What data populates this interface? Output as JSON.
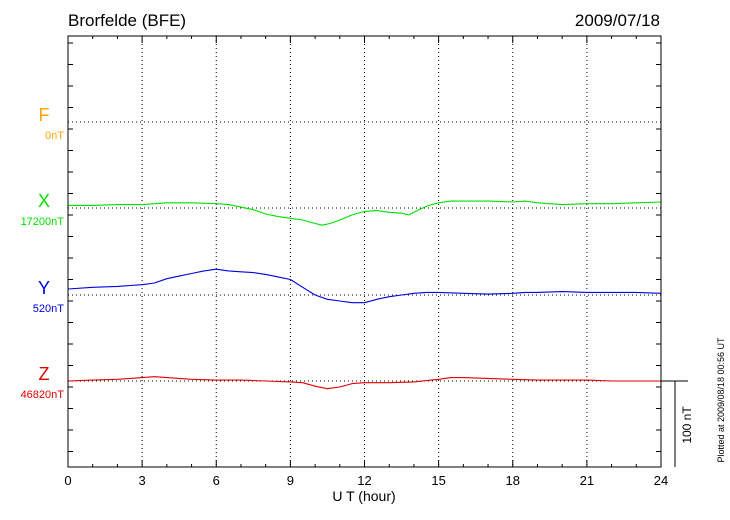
{
  "chart_data": {
    "type": "line",
    "title": "Brorfelde (BFE)",
    "date": "2009/07/18",
    "xlabel": "U T (hour)",
    "xlim": [
      0,
      24
    ],
    "xticks": [
      0,
      3,
      6,
      9,
      12,
      15,
      18,
      21,
      24
    ],
    "grid": true,
    "scale_bar_label": "100 nT",
    "side_note": "Plotted at 2009/08/18 00:56 UT",
    "series": [
      {
        "name": "F",
        "baseline_label": "0nT",
        "color": "#ffa500",
        "x": [],
        "y": []
      },
      {
        "name": "X",
        "baseline_label": "17200nT",
        "color": "#00e000",
        "x": [
          0,
          1,
          2,
          3,
          4,
          5,
          6,
          6.5,
          7,
          7.5,
          8,
          8.5,
          9,
          9.5,
          10,
          10.3,
          10.6,
          11,
          11.5,
          12,
          12.5,
          13,
          13.5,
          13.8,
          14.2,
          14.6,
          15,
          15.5,
          16,
          17,
          18,
          18.5,
          19,
          20,
          21,
          22,
          23,
          24
        ],
        "y": [
          3,
          3,
          4,
          4,
          6,
          6,
          5,
          4,
          1,
          -2,
          -7,
          -10,
          -12,
          -14,
          -18,
          -20,
          -18,
          -14,
          -8,
          -4,
          -3,
          -5,
          -6,
          -8,
          -2,
          3,
          6,
          8,
          8,
          8,
          7,
          8,
          6,
          4,
          5,
          5,
          6,
          7
        ]
      },
      {
        "name": "Y",
        "baseline_label": "520nT",
        "color": "#0000e0",
        "x": [
          0,
          1,
          2,
          3,
          3.5,
          4,
          4.5,
          5,
          5.5,
          6,
          6.5,
          7,
          7.5,
          8,
          8.5,
          9,
          9.5,
          10,
          10.5,
          11,
          11.5,
          12,
          12.5,
          13,
          13.5,
          14,
          14.5,
          15,
          16,
          17,
          18,
          18.5,
          19,
          20,
          21,
          22,
          23,
          24
        ],
        "y": [
          7,
          9,
          10,
          12,
          14,
          19,
          22,
          25,
          28,
          30,
          28,
          27,
          26,
          24,
          21,
          18,
          9,
          0,
          -5,
          -7,
          -9,
          -9,
          -5,
          -2,
          0,
          2,
          3,
          3,
          2,
          1,
          2,
          3,
          3,
          4,
          3,
          3,
          3,
          2
        ]
      },
      {
        "name": "Z",
        "baseline_label": "46820nT",
        "color": "#e00000",
        "x": [
          0,
          1,
          2,
          3,
          3.5,
          4,
          5,
          6,
          7,
          8,
          9,
          9.5,
          10,
          10.5,
          11,
          11.5,
          12,
          13,
          14,
          15,
          15.5,
          16,
          17,
          18,
          19,
          20,
          21,
          22,
          23,
          24
        ],
        "y": [
          0,
          1,
          2,
          4,
          5,
          4,
          2,
          1,
          1,
          0,
          -1,
          -2,
          -6,
          -9,
          -7,
          -3,
          -2,
          -2,
          -1,
          2,
          4,
          4,
          3,
          2,
          1,
          1,
          1,
          0,
          0,
          0
        ]
      }
    ]
  }
}
